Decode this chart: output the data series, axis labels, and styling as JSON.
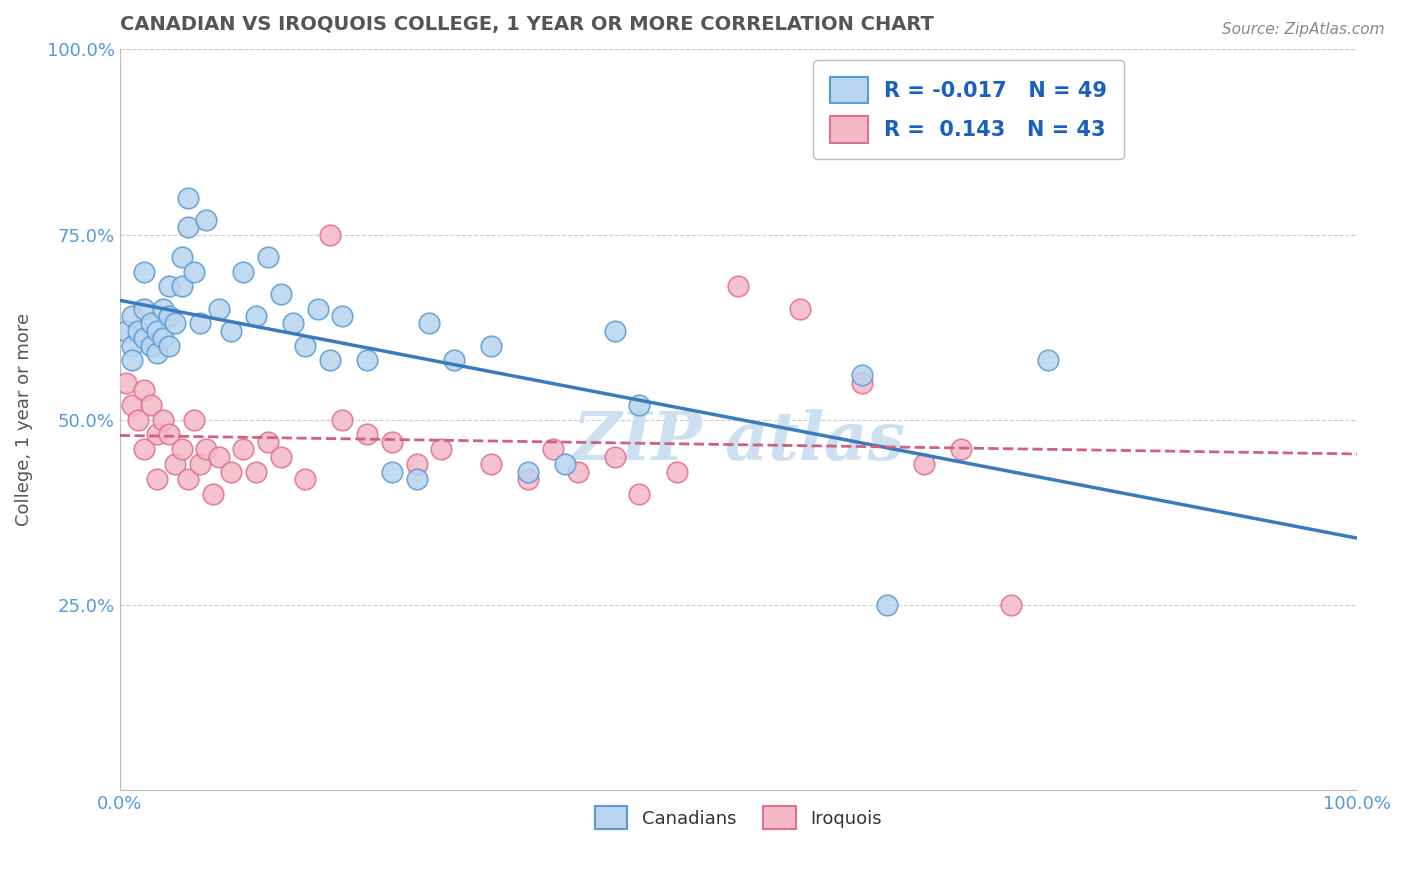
{
  "title": "CANADIAN VS IROQUOIS COLLEGE, 1 YEAR OR MORE CORRELATION CHART",
  "source_text": "Source: ZipAtlas.com",
  "ylabel": "College, 1 year or more",
  "legend_bottom_labels": [
    "Canadians",
    "Iroquois"
  ],
  "canadian_R": -0.017,
  "canadian_N": 49,
  "iroquois_R": 0.143,
  "iroquois_N": 43,
  "xlim": [
    0,
    1
  ],
  "ylim": [
    0,
    1
  ],
  "ytick_vals": [
    0.25,
    0.5,
    0.75,
    1.0
  ],
  "ytick_labels": [
    "25.0%",
    "50.0%",
    "75.0%",
    "100.0%"
  ],
  "canadian_fill": "#b8d4ee",
  "canadian_edge": "#5b9bd5",
  "iroquois_fill": "#f4b8c8",
  "iroquois_edge": "#e07090",
  "canadian_line_color": "#3a7bbf",
  "iroquois_line_color": "#d06080",
  "background_color": "#ffffff",
  "grid_color": "#cccccc",
  "title_color": "#555555",
  "watermark_color": "#c8ddf0",
  "tick_color": "#5599dd",
  "legend_text_color": "#1a60c0",
  "canadians_x": [
    0.005,
    0.01,
    0.01,
    0.01,
    0.015,
    0.02,
    0.02,
    0.02,
    0.025,
    0.025,
    0.03,
    0.03,
    0.035,
    0.035,
    0.04,
    0.04,
    0.04,
    0.045,
    0.05,
    0.05,
    0.055,
    0.055,
    0.06,
    0.065,
    0.07,
    0.08,
    0.09,
    0.1,
    0.11,
    0.12,
    0.13,
    0.14,
    0.15,
    0.16,
    0.17,
    0.18,
    0.2,
    0.22,
    0.24,
    0.25,
    0.27,
    0.3,
    0.33,
    0.36,
    0.4,
    0.42,
    0.6,
    0.62,
    0.75
  ],
  "canadians_y": [
    0.62,
    0.64,
    0.6,
    0.58,
    0.62,
    0.65,
    0.61,
    0.7,
    0.63,
    0.6,
    0.62,
    0.59,
    0.65,
    0.61,
    0.68,
    0.64,
    0.6,
    0.63,
    0.72,
    0.68,
    0.8,
    0.76,
    0.7,
    0.63,
    0.77,
    0.65,
    0.62,
    0.7,
    0.64,
    0.72,
    0.67,
    0.63,
    0.6,
    0.65,
    0.58,
    0.64,
    0.58,
    0.43,
    0.42,
    0.63,
    0.58,
    0.6,
    0.43,
    0.44,
    0.62,
    0.52,
    0.56,
    0.25,
    0.58
  ],
  "iroquois_x": [
    0.005,
    0.01,
    0.015,
    0.02,
    0.02,
    0.025,
    0.03,
    0.03,
    0.035,
    0.04,
    0.045,
    0.05,
    0.055,
    0.06,
    0.065,
    0.07,
    0.075,
    0.08,
    0.09,
    0.1,
    0.11,
    0.12,
    0.13,
    0.15,
    0.17,
    0.18,
    0.2,
    0.22,
    0.24,
    0.26,
    0.3,
    0.33,
    0.35,
    0.37,
    0.4,
    0.42,
    0.45,
    0.5,
    0.55,
    0.6,
    0.65,
    0.68,
    0.72
  ],
  "iroquois_y": [
    0.55,
    0.52,
    0.5,
    0.54,
    0.46,
    0.52,
    0.48,
    0.42,
    0.5,
    0.48,
    0.44,
    0.46,
    0.42,
    0.5,
    0.44,
    0.46,
    0.4,
    0.45,
    0.43,
    0.46,
    0.43,
    0.47,
    0.45,
    0.42,
    0.75,
    0.5,
    0.48,
    0.47,
    0.44,
    0.46,
    0.44,
    0.42,
    0.46,
    0.43,
    0.45,
    0.4,
    0.43,
    0.68,
    0.65,
    0.55,
    0.44,
    0.46,
    0.25
  ]
}
